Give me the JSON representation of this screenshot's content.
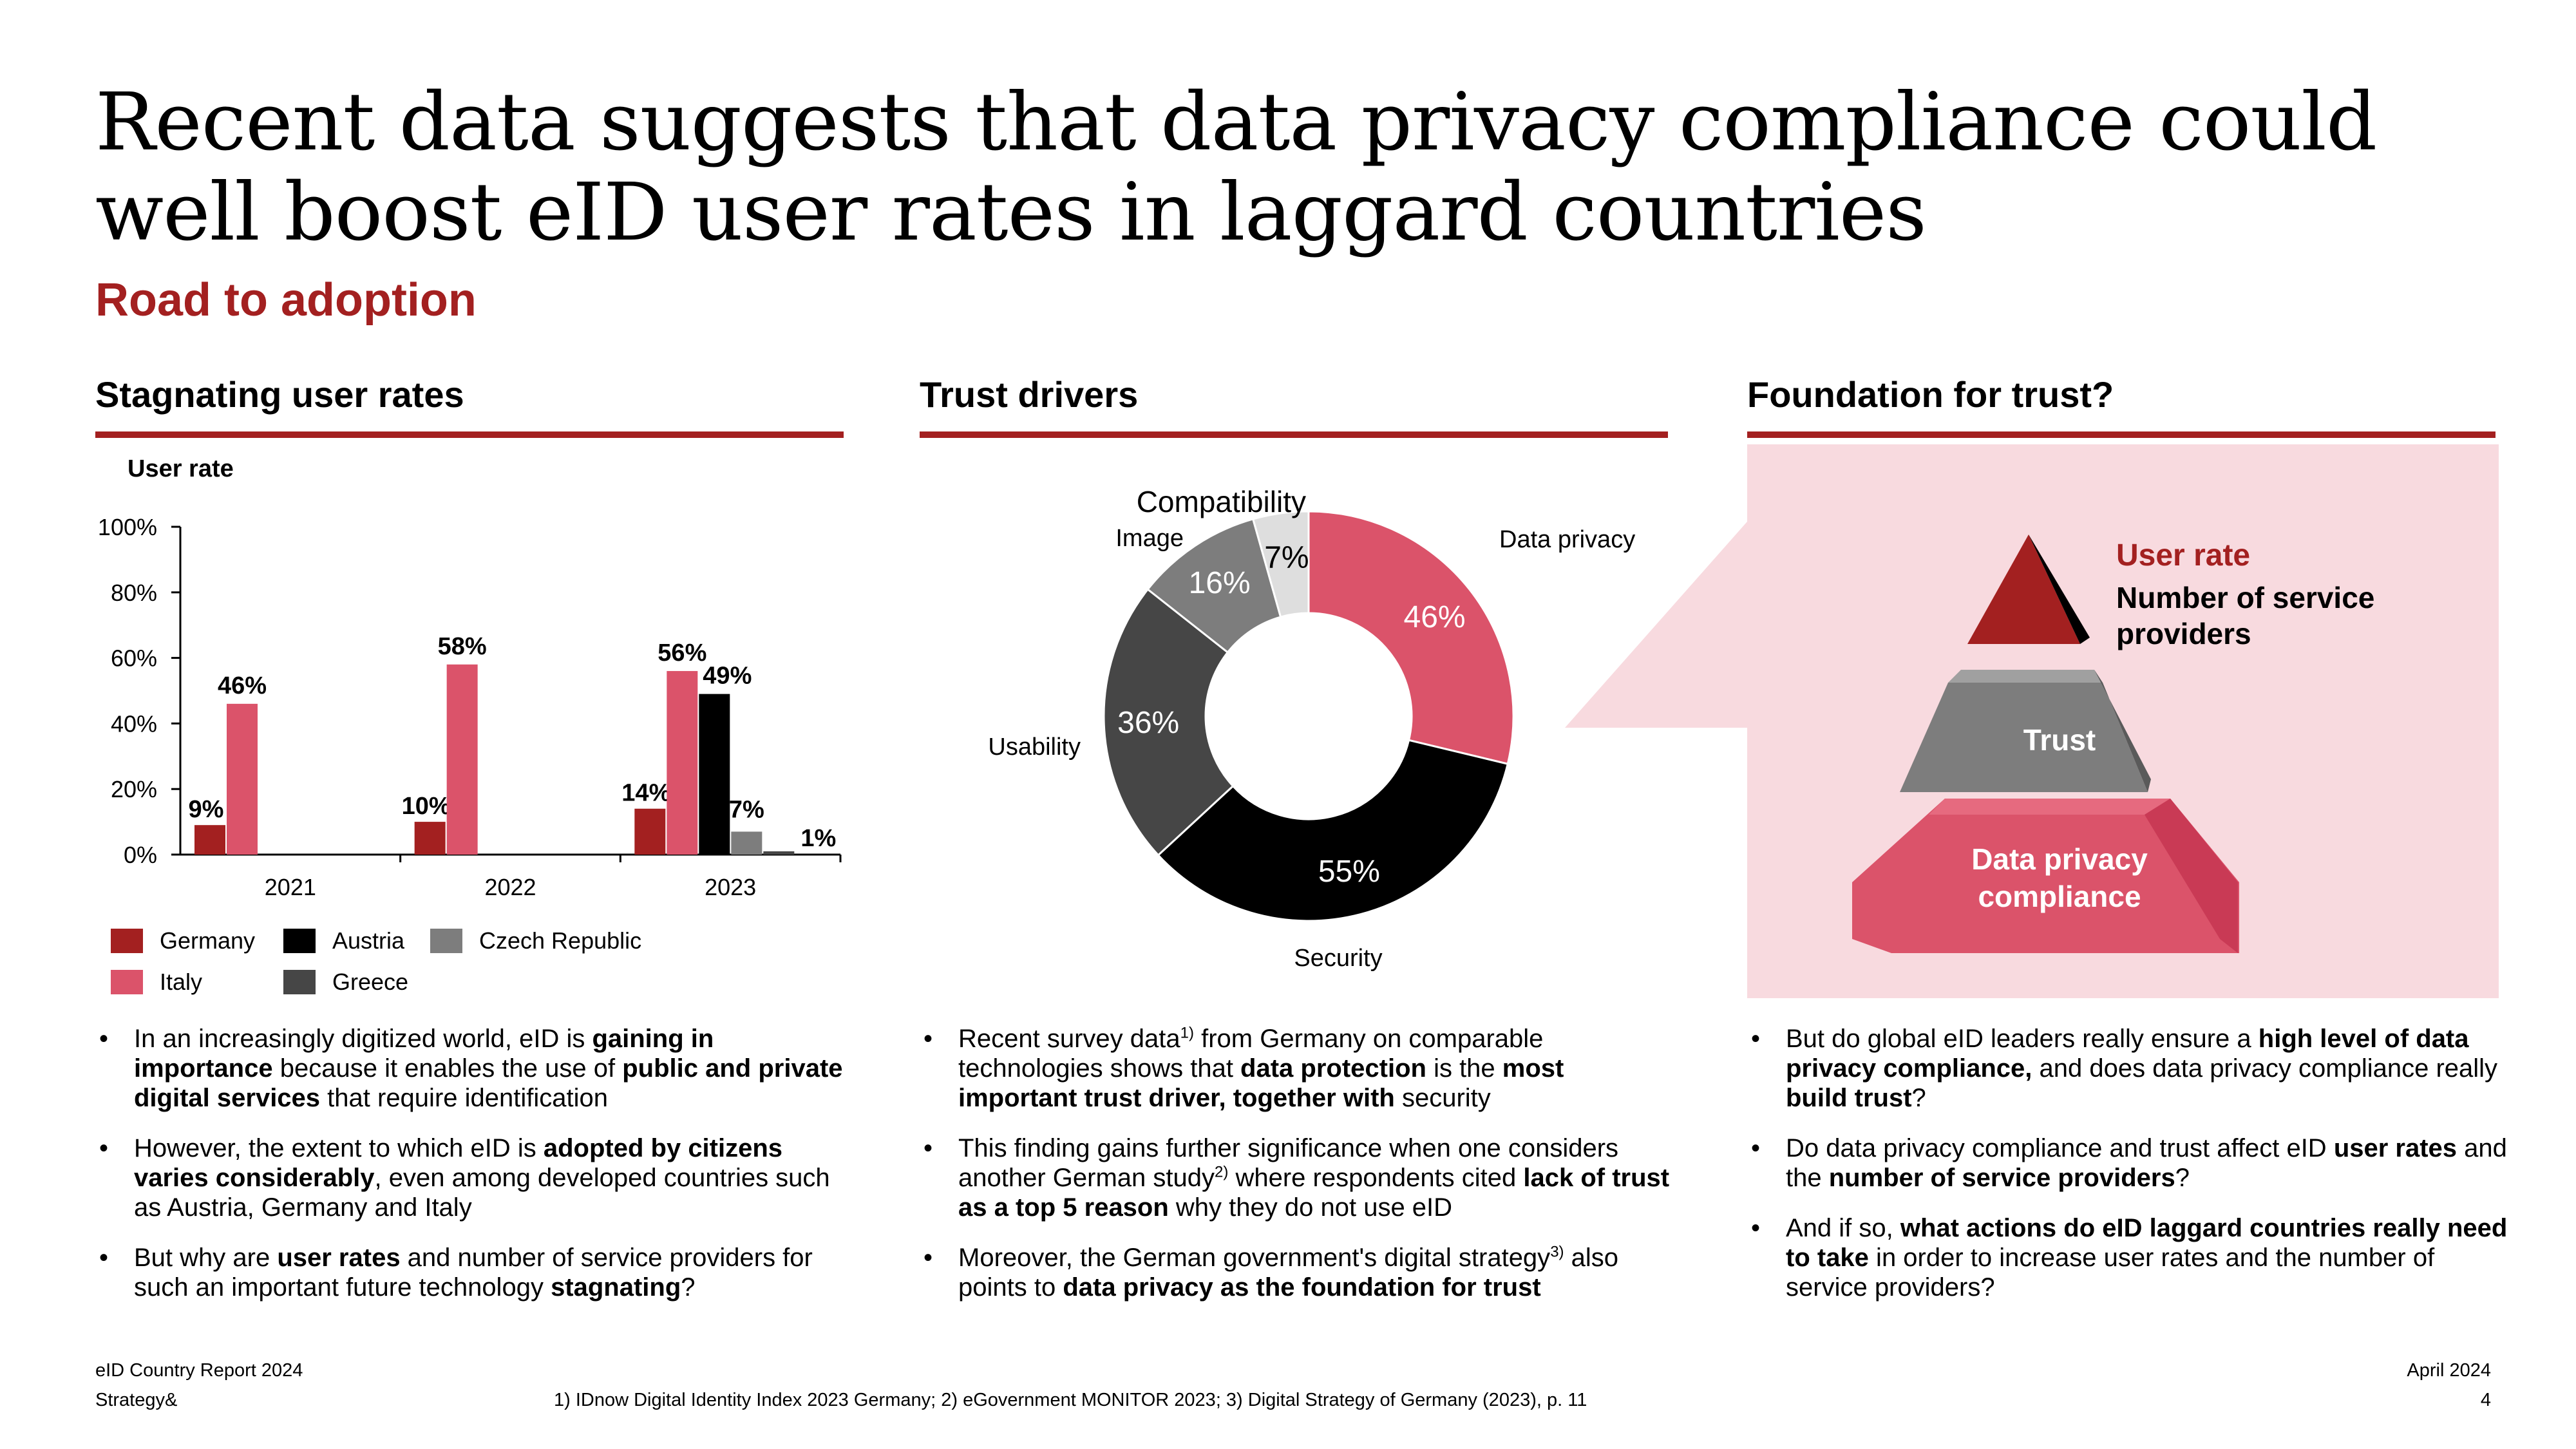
{
  "title": "Recent data suggests that data privacy compliance could well boost eID user rates in laggard countries",
  "subtitle": "Road to adoption",
  "columns": {
    "left": {
      "heading": "Stagnating user rates"
    },
    "middle": {
      "heading": "Trust drivers"
    },
    "right": {
      "heading": "Foundation for trust?"
    }
  },
  "colors": {
    "accent": "#a32020",
    "germany": "#a32020",
    "italy": "#db536a",
    "austria": "#000000",
    "greece": "#464646",
    "czech": "#7d7d7d",
    "pink_bg": "#f8dadf",
    "light_gray": "#dedede"
  },
  "chart_data": [
    {
      "type": "bar",
      "ylabel": "User rate",
      "ylim": [
        0,
        100
      ],
      "y_ticks": [
        "0%",
        "20%",
        "40%",
        "60%",
        "80%",
        "100%"
      ],
      "categories": [
        "2021",
        "2022",
        "2023"
      ],
      "series": [
        {
          "name": "Germany",
          "values": [
            9,
            10,
            14
          ],
          "color": "#a32020"
        },
        {
          "name": "Italy",
          "values": [
            46,
            58,
            56
          ],
          "color": "#db536a"
        },
        {
          "name": "Austria",
          "values": [
            null,
            null,
            49
          ],
          "color": "#000000"
        },
        {
          "name": "Czech Republic",
          "values": [
            null,
            null,
            7
          ],
          "color": "#7d7d7d"
        },
        {
          "name": "Greece",
          "values": [
            null,
            null,
            1
          ],
          "color": "#464646"
        }
      ],
      "legend_order": [
        "Germany",
        "Austria",
        "Czech Republic",
        "Italy",
        "Greece"
      ],
      "legend_position": "bottom",
      "grid": false
    },
    {
      "type": "pie",
      "donut": true,
      "slices": [
        {
          "label": "Data privacy",
          "value": 46,
          "display": "46%",
          "color": "#db536a"
        },
        {
          "label": "Security",
          "value": 55,
          "display": "55%",
          "color": "#000000"
        },
        {
          "label": "Usability",
          "value": 36,
          "display": "36%",
          "color": "#464646"
        },
        {
          "label": "Image",
          "value": 16,
          "display": "16%",
          "color": "#7d7d7d"
        },
        {
          "label": "Compatibility",
          "value": 7,
          "display": "7%",
          "color": "#dedede"
        }
      ]
    }
  ],
  "pyramid": {
    "legend_user_rate": "User rate",
    "legend_providers": "Number of service providers",
    "layer_trust": "Trust",
    "layer_base": "Data privacy compliance"
  },
  "bullets": {
    "left": [
      [
        {
          "t": "In an increasingly digitized world, eID is "
        },
        {
          "t": "gaining in importance",
          "b": true
        },
        {
          "t": " because it enables the use of "
        },
        {
          "t": "public and private digital services",
          "b": true
        },
        {
          "t": " that require identification"
        }
      ],
      [
        {
          "t": "However, the extent to which eID is "
        },
        {
          "t": "adopted by citizens varies considerably",
          "b": true
        },
        {
          "t": ", even among developed countries such as Austria, Germany and Italy"
        }
      ],
      [
        {
          "t": "But why are "
        },
        {
          "t": "user rates",
          "b": true
        },
        {
          "t": " and number of service providers for such an important future technology "
        },
        {
          "t": "stagnating",
          "b": true
        },
        {
          "t": "?"
        }
      ]
    ],
    "middle": [
      [
        {
          "t": "Recent survey data"
        },
        {
          "t": "1)",
          "sup": true
        },
        {
          "t": " from Germany on comparable technologies shows that "
        },
        {
          "t": "data protection",
          "b": true
        },
        {
          "t": " is the "
        },
        {
          "t": "most important trust driver, together with",
          "b": true
        },
        {
          "t": " security"
        }
      ],
      [
        {
          "t": "This finding gains further significance when one considers another German study"
        },
        {
          "t": "2)",
          "sup": true
        },
        {
          "t": " where respondents cited "
        },
        {
          "t": "lack of trust as a top 5 reason",
          "b": true
        },
        {
          "t": " why they do not use eID"
        }
      ],
      [
        {
          "t": "Moreover, the German government's digital strategy"
        },
        {
          "t": "3)",
          "sup": true
        },
        {
          "t": " also points to "
        },
        {
          "t": "data privacy as the foundation for trust",
          "b": true
        }
      ]
    ],
    "right": [
      [
        {
          "t": "But do global eID leaders really ensure a "
        },
        {
          "t": "high level of data privacy compliance,",
          "b": true
        },
        {
          "t": " and does data privacy compliance really "
        },
        {
          "t": "build trust",
          "b": true
        },
        {
          "t": "?"
        }
      ],
      [
        {
          "t": "Do data privacy compliance and trust affect eID "
        },
        {
          "t": "user rates",
          "b": true
        },
        {
          "t": " and the "
        },
        {
          "t": "number of service providers",
          "b": true
        },
        {
          "t": "?"
        }
      ],
      [
        {
          "t": "And if so, "
        },
        {
          "t": "what actions do eID laggard countries really need to take",
          "b": true
        },
        {
          "t": " in order to increase user rates and the number of service providers?"
        }
      ]
    ]
  },
  "footer": {
    "report": "eID Country Report 2024",
    "brand": "Strategy&",
    "sources": "1) IDnow Digital Identity Index 2023 Germany;  2) eGovernment MONITOR 2023;  3) Digital Strategy of Germany (2023), p. 11",
    "date": "April 2024",
    "page": "4"
  }
}
